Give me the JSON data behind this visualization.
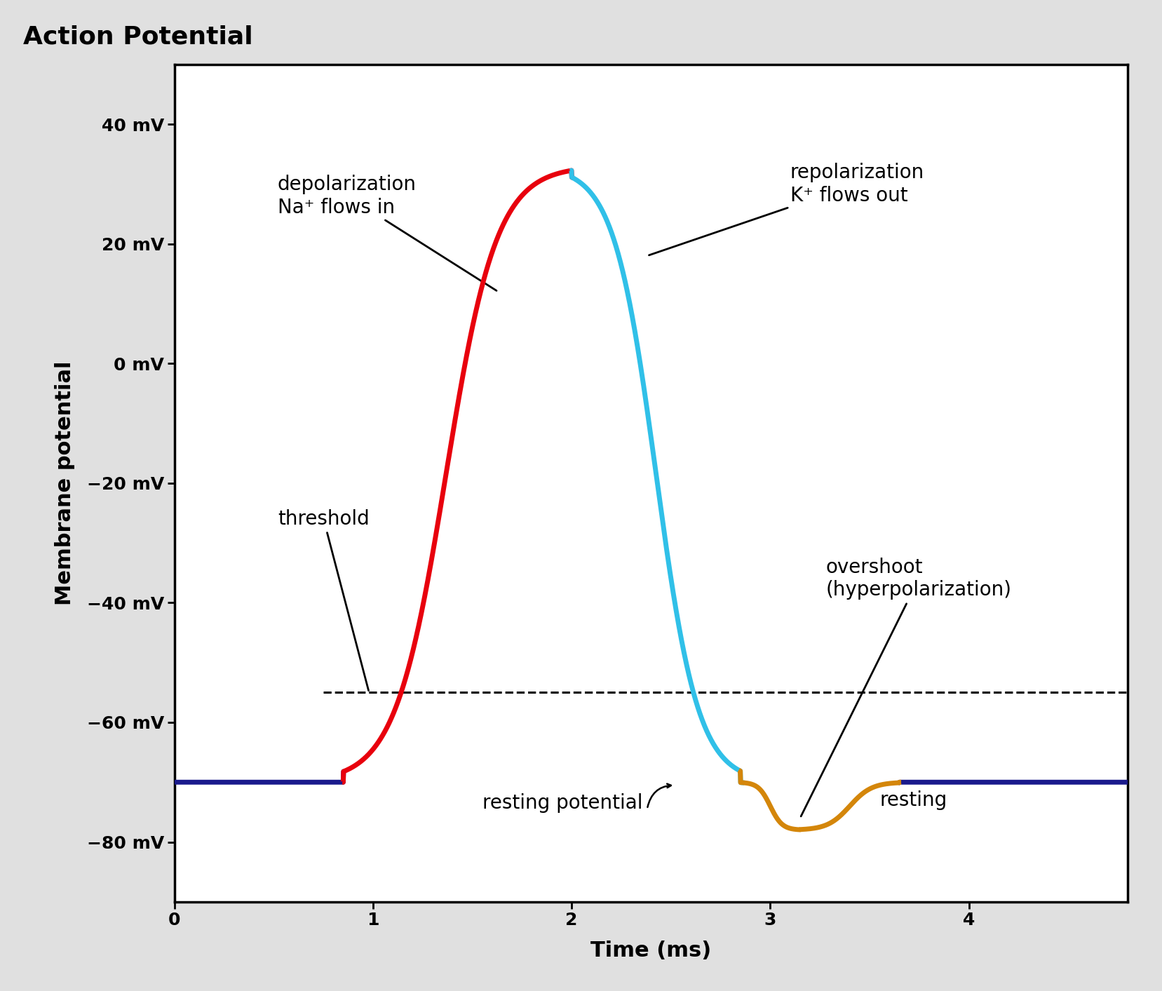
{
  "title": "Action Potential",
  "xlabel": "Time (ms)",
  "ylabel": "Membrane potential",
  "xlim": [
    0,
    4.8
  ],
  "ylim": [
    -90,
    50
  ],
  "yticks": [
    -80,
    -60,
    -40,
    -20,
    0,
    20,
    40
  ],
  "xticks": [
    0,
    1,
    2,
    3,
    4
  ],
  "resting_potential": -70,
  "threshold_level": -55,
  "peak_potential": 33,
  "overshoot_potential": -78,
  "t_depol_start": 0.85,
  "t_peak": 2.0,
  "t_repol_end": 2.85,
  "t_overshoot_min": 3.15,
  "t_return": 3.65,
  "t_end": 4.8,
  "colors": {
    "depolarization": "#E8000D",
    "repolarization": "#30C0E8",
    "resting": "#1A1A8C",
    "overshoot": "#D4860A",
    "background": "#E0E0E0",
    "text": "#000000"
  },
  "annotations": {
    "depolarization_line1": "depolarization",
    "depolarization_line2": "Na",
    "depolarization_line2b": " flows in",
    "repolarization_line1": "repolarization",
    "repolarization_line2": "K",
    "repolarization_line2b": " flows out",
    "threshold_label": "threshold",
    "overshoot_line1": "overshoot",
    "overshoot_line2": "(hyperpolarization)",
    "resting_label": "resting potential",
    "resting_end_label": "resting"
  },
  "font_sizes": {
    "title": 26,
    "axis_label": 22,
    "tick_label": 18,
    "annotation": 20
  }
}
